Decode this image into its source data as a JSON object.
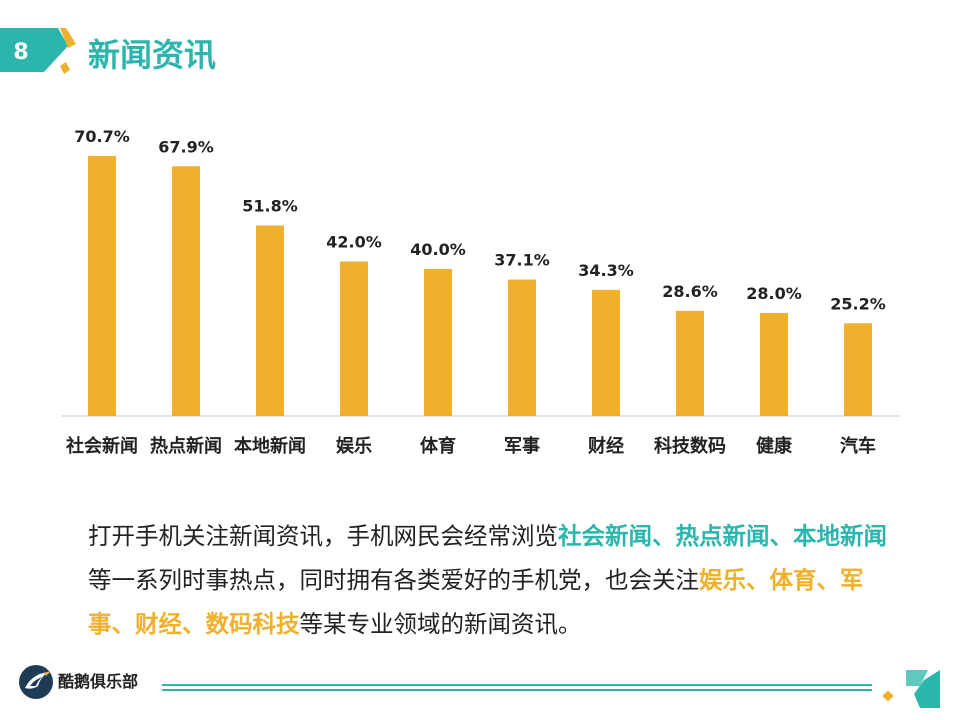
{
  "header": {
    "page_number": "8",
    "title": "新闻资讯"
  },
  "colors": {
    "accent_teal": "#2bb5ac",
    "accent_gold": "#efb02c",
    "bar": "#efb02c",
    "text": "#222222"
  },
  "chart_data": {
    "type": "bar",
    "title": "",
    "xlabel": "",
    "ylabel": "",
    "categories": [
      "社会新闻",
      "热点新闻",
      "本地新闻",
      "娱乐",
      "体育",
      "军事",
      "财经",
      "科技数码",
      "健康",
      "汽车"
    ],
    "values": [
      70.7,
      67.9,
      51.8,
      42.0,
      40.0,
      37.1,
      34.3,
      28.6,
      28.0,
      25.2
    ],
    "value_labels": [
      "70.7%",
      "67.9%",
      "51.8%",
      "42.0%",
      "40.0%",
      "37.1%",
      "34.3%",
      "28.6%",
      "28.0%",
      "25.2%"
    ],
    "unit": "%",
    "ylim": [
      0,
      75
    ],
    "grid": false,
    "legend": "none",
    "bar_color": "#efb02c"
  },
  "body": {
    "segments": [
      {
        "text": "打开手机关注新闻资讯，手机网民会经常浏览",
        "style": "normal"
      },
      {
        "text": "社会新闻、热点新闻、本地新闻",
        "style": "teal"
      },
      {
        "text": "等一系列时事热点，同时拥有各类爱好的手机党，也会关注",
        "style": "normal"
      },
      {
        "text": "娱乐、体育、军事、财经、数码科技",
        "style": "gold"
      },
      {
        "text": "等某专业领域的新闻资讯。",
        "style": "normal"
      }
    ]
  },
  "footer": {
    "brand": "酷鹅俱乐部",
    "logo_icon": "penguin-logo-icon"
  }
}
